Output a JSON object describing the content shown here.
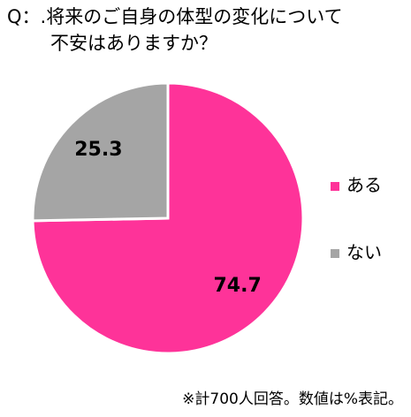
{
  "chart_data": {
    "type": "pie",
    "title": [
      "Q：.将来のご自身の体型の変化について",
      "不安はありますか？"
    ],
    "categories": [
      "ある",
      "ない"
    ],
    "values": [
      74.7,
      25.3
    ],
    "colors": [
      "#fe3399",
      "#a5a5a5"
    ],
    "note": "※計700人回答。数値は%表記。"
  }
}
